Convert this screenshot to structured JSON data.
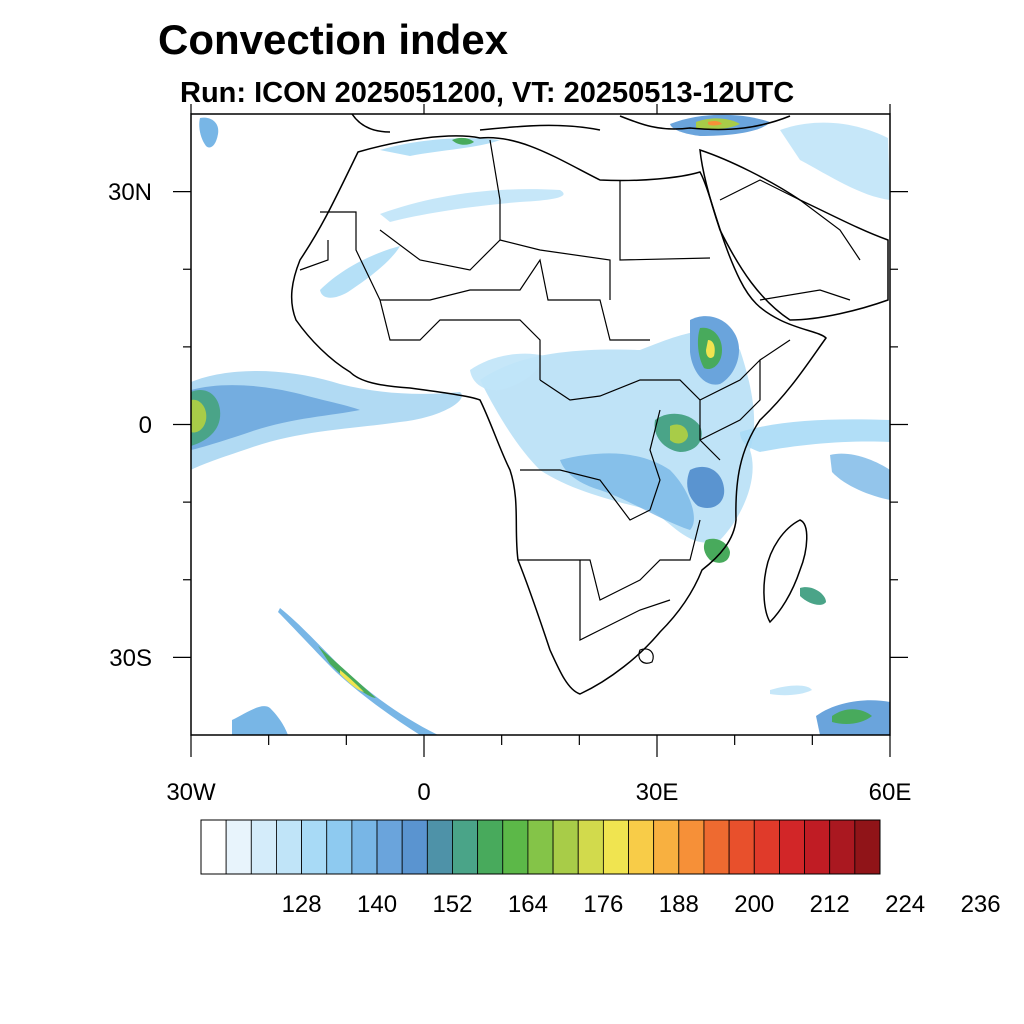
{
  "title": "Convection index",
  "subtitle": "Run: ICON 2025051200,  VT: 20250513-12UTC",
  "map": {
    "region": "Africa and surrounding oceans",
    "lon_range_deg": [
      -30,
      60
    ],
    "lat_range_deg": [
      -40,
      40
    ],
    "x_tick_labels": [
      {
        "lon": -30,
        "label": "30W"
      },
      {
        "lon": 0,
        "label": "0"
      },
      {
        "lon": 30,
        "label": "30E"
      },
      {
        "lon": 60,
        "label": "60E"
      }
    ],
    "y_tick_labels": [
      {
        "lat": 30,
        "label": "30N"
      },
      {
        "lat": 0,
        "label": "0"
      },
      {
        "lat": -30,
        "label": "30S"
      }
    ],
    "minor_lon_ticks": [
      -20,
      -10,
      10,
      20,
      40,
      50
    ],
    "minor_lat_ticks": [
      20,
      10,
      -10,
      -20
    ]
  },
  "colorbar": {
    "colors": [
      "#ffffff",
      "#e8f4fc",
      "#d4ecfa",
      "#c0e4f8",
      "#a8daf6",
      "#8ecaf0",
      "#78b6e6",
      "#6aa4dc",
      "#5a94d0",
      "#4e92a8",
      "#4aa488",
      "#48aa5c",
      "#5cb848",
      "#84c448",
      "#a8cc48",
      "#d2da4c",
      "#f0e450",
      "#f8cc48",
      "#f8b040",
      "#f69038",
      "#ee6a30",
      "#e8502c",
      "#e03a2a",
      "#d22628",
      "#c01c24",
      "#aa1820",
      "#901418"
    ],
    "tick_labels": [
      "128",
      "140",
      "152",
      "164",
      "176",
      "188",
      "200",
      "212",
      "224",
      "236"
    ],
    "tick_values": [
      128,
      140,
      152,
      164,
      176,
      188,
      200,
      212,
      224,
      236
    ],
    "min_value": 116,
    "step": 4
  }
}
